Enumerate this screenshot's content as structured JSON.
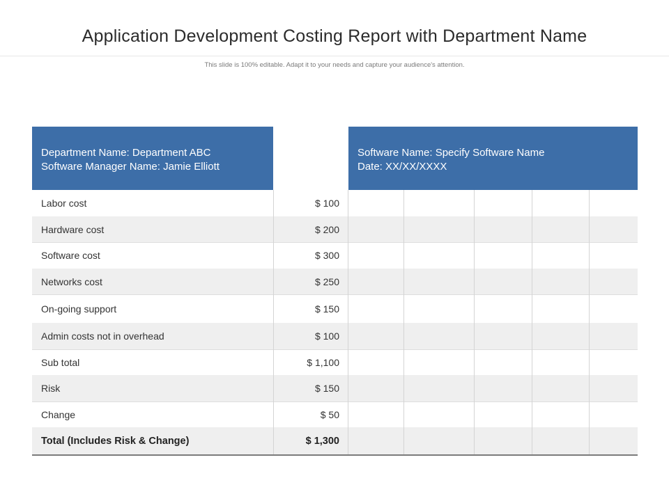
{
  "page": {
    "title": "Application Development Costing Report with Department Name",
    "subtitle": "This slide is 100% editable. Adapt it to your needs and capture your audience's attention."
  },
  "header": {
    "left": {
      "department": "Department Name: Department ABC",
      "manager": "Software Manager Name: Jamie Elliott"
    },
    "right": {
      "software": "Software Name: Specify Software Name",
      "date": "Date: XX/XX/XXXX"
    }
  },
  "rows": [
    {
      "label": "Labor cost",
      "amount": "$ 100"
    },
    {
      "label": "Hardware cost",
      "amount": "$ 200"
    },
    {
      "label": "Software cost",
      "amount": "$ 300"
    },
    {
      "label": "Networks cost",
      "amount": "$ 250"
    },
    {
      "label": "On-going support",
      "amount": "$ 150"
    },
    {
      "label": "Admin costs not in overhead",
      "amount": "$ 100"
    },
    {
      "label": "Sub total",
      "amount": "$ 1,100"
    },
    {
      "label": "Risk",
      "amount": "$ 150"
    },
    {
      "label": "Change",
      "amount": "$ 50"
    }
  ],
  "total": {
    "label": "Total (Includes Risk & Change)",
    "amount": "$ 1,300"
  },
  "colors": {
    "header_bg": "#3d6ea8",
    "shaded_row": "#efefef"
  }
}
